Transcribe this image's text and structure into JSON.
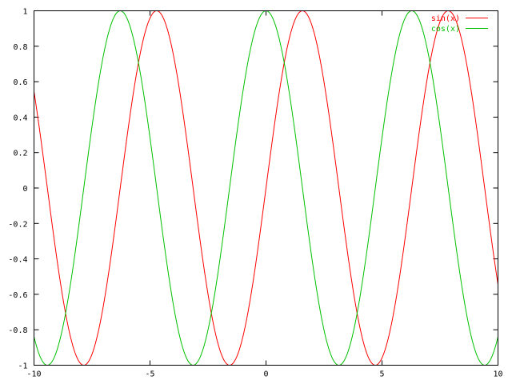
{
  "chart_data": {
    "type": "line",
    "title": "",
    "xlabel": "",
    "ylabel": "",
    "xlim": [
      -10,
      10
    ],
    "ylim": [
      -1,
      1
    ],
    "xticks": [
      -10,
      -5,
      0,
      5,
      10
    ],
    "yticks": [
      -1,
      -0.8,
      -0.6,
      -0.4,
      -0.2,
      0,
      0.2,
      0.4,
      0.6,
      0.8,
      1
    ],
    "xtick_labels": [
      "-10",
      "-5",
      "0",
      "5",
      "10"
    ],
    "ytick_labels": [
      "-1",
      "-0.8",
      "-0.6",
      "-0.4",
      "-0.2",
      "0",
      "0.2",
      "0.4",
      "0.6",
      "0.8",
      "1"
    ],
    "grid": false,
    "legend_position": "top-right",
    "series": [
      {
        "name": "sin(x)",
        "function": "sin",
        "color": "#ff0000"
      },
      {
        "name": "cos(x)",
        "function": "cos",
        "color": "#00c000"
      }
    ]
  }
}
